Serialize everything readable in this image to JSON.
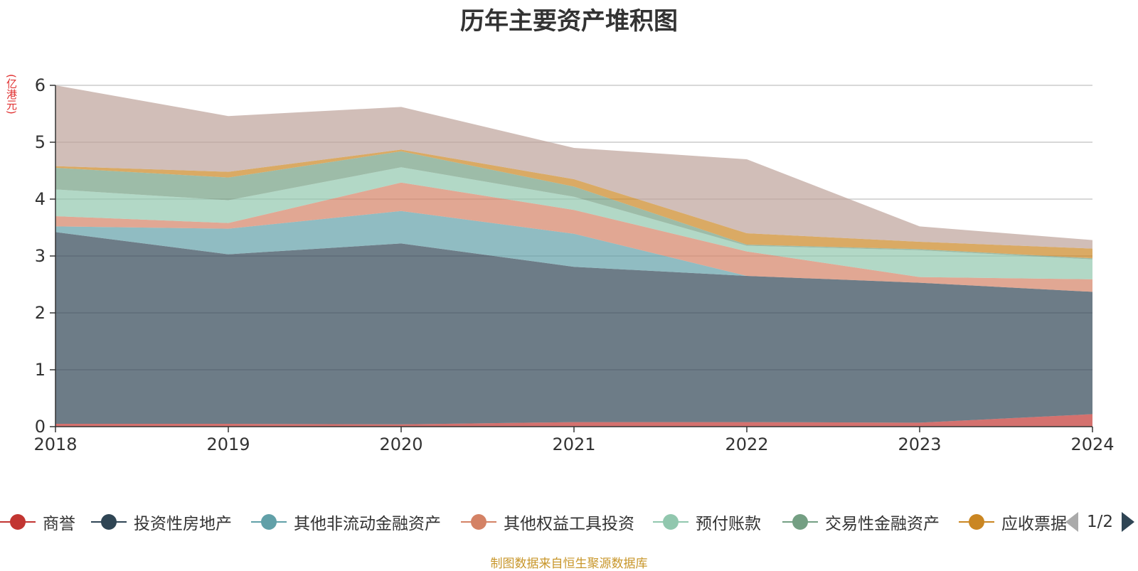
{
  "chart_data": {
    "type": "area",
    "stacked": true,
    "title": "历年主要资产堆积图",
    "unit": "(亿港元)",
    "x": [
      "2018",
      "2019",
      "2020",
      "2021",
      "2022",
      "2023",
      "2024"
    ],
    "ylim": [
      0,
      6
    ],
    "yticks": [
      0,
      1,
      2,
      3,
      4,
      5,
      6
    ],
    "grid": true,
    "series": [
      {
        "name": "商誉",
        "color": "#c23531",
        "values": [
          0.05,
          0.05,
          0.04,
          0.08,
          0.08,
          0.07,
          0.22
        ]
      },
      {
        "name": "投资性房地产",
        "color": "#2f4554",
        "values": [
          3.37,
          2.98,
          3.18,
          2.73,
          2.57,
          2.46,
          2.15
        ]
      },
      {
        "name": "其他非流动金融资产",
        "color": "#61a0a8",
        "values": [
          0.1,
          0.45,
          0.57,
          0.58,
          0.0,
          0.0,
          0.0
        ]
      },
      {
        "name": "其他权益工具投资",
        "color": "#d48265",
        "values": [
          0.18,
          0.1,
          0.5,
          0.42,
          0.43,
          0.1,
          0.22
        ]
      },
      {
        "name": "预付账款",
        "color": "#91c7ae",
        "values": [
          0.47,
          0.4,
          0.27,
          0.23,
          0.1,
          0.47,
          0.35
        ]
      },
      {
        "name": "交易性金融资产",
        "color": "#749f83",
        "values": [
          0.38,
          0.4,
          0.28,
          0.18,
          0.02,
          0.02,
          0.02
        ]
      },
      {
        "name": "应收票据",
        "color": "#ca8622",
        "values": [
          0.03,
          0.1,
          0.03,
          0.13,
          0.2,
          0.13,
          0.17
        ]
      },
      {
        "name": "",
        "color": "#bda29a",
        "values": [
          1.42,
          0.98,
          0.75,
          0.55,
          1.3,
          0.27,
          0.15
        ]
      }
    ],
    "legend_position": "bottom",
    "legend_page": "1/2"
  },
  "source_note": "制图数据来自恒生聚源数据库"
}
